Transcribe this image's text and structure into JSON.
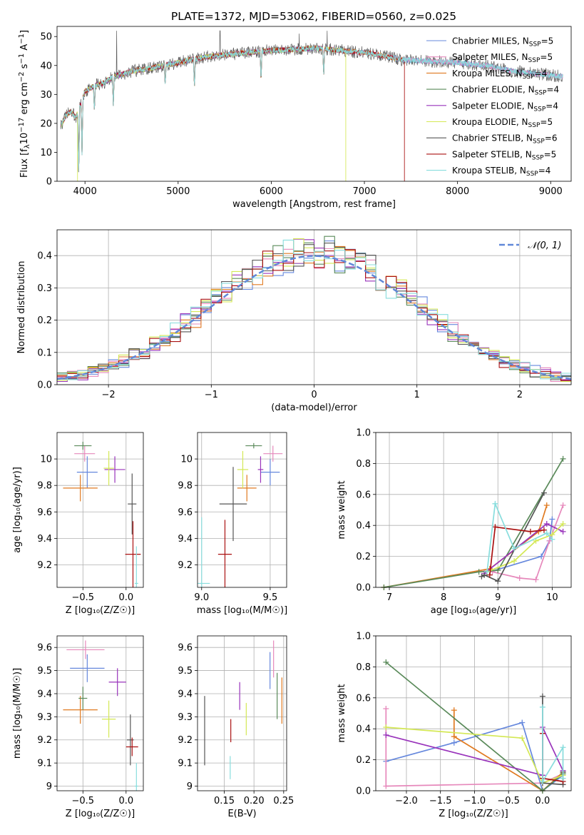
{
  "figure": {
    "title": "PLATE=1372, MJD=53062, FIBERID=0560, z=0.025"
  },
  "models": [
    {
      "name": "Chabrier MILES, N$_{SSP}$=5",
      "label": "Chabrier MILES, N",
      "sub": "SSP",
      "rest": "=5",
      "color": "#6688dd"
    },
    {
      "name": "Salpeter MILES, N$_{SSP}$=5",
      "label": "Salpeter MILES, N",
      "sub": "SSP",
      "rest": "=5",
      "color": "#e688bb"
    },
    {
      "name": "Kroupa MILES, N$_{SSP}$=4",
      "label": "Kroupa MILES, N",
      "sub": "SSP",
      "rest": "=4",
      "color": "#e07a20"
    },
    {
      "name": "Chabrier ELODIE, N$_{SSP}$=4",
      "label": "Chabrier ELODIE, N",
      "sub": "SSP",
      "rest": "=4",
      "color": "#5a8a5a"
    },
    {
      "name": "Salpeter ELODIE, N$_{SSP}$=4",
      "label": "Salpeter ELODIE, N",
      "sub": "SSP",
      "rest": "=4",
      "color": "#9933bb"
    },
    {
      "name": "Kroupa ELODIE, N$_{SSP}$=5",
      "label": "Kroupa ELODIE, N",
      "sub": "SSP",
      "rest": "=5",
      "color": "#d4e855"
    },
    {
      "name": "Chabrier STELIB, N$_{SSP}$=6",
      "label": "Chabrier STELIB, N",
      "sub": "SSP",
      "rest": "=6",
      "color": "#555555"
    },
    {
      "name": "Salpeter STELIB, N$_{SSP}$=5",
      "label": "Salpeter STELIB, N",
      "sub": "SSP",
      "rest": "=5",
      "color": "#aa1111"
    },
    {
      "name": "Kroupa STELIB, N$_{SSP}$=4",
      "label": "Kroupa STELIB, N",
      "sub": "SSP",
      "rest": "=4",
      "color": "#88dddd"
    }
  ],
  "chart_data": [
    {
      "id": "spectrum",
      "type": "line",
      "title": "PLATE=1372, MJD=53062, FIBERID=0560, z=0.025",
      "xlabel": "wavelength [Angstrom, rest frame]",
      "ylabel_parts": [
        "Flux [f",
        "λ",
        "10",
        "−17",
        " erg cm",
        "−2",
        " s",
        "−1",
        " A",
        "−1",
        "]"
      ],
      "xlim": [
        3700,
        9220
      ],
      "ylim": [
        0,
        53.5
      ],
      "xticks": [
        4000,
        5000,
        6000,
        7000,
        8000,
        9000
      ],
      "yticks": [
        0,
        10,
        20,
        30,
        40,
        50
      ],
      "continuum": {
        "x": [
          3740,
          3800,
          3850,
          3900,
          3950,
          4000,
          4100,
          4200,
          4300,
          4400,
          4500,
          4700,
          5000,
          5300,
          5600,
          5900,
          6200,
          6500,
          6800,
          7100,
          7400,
          7700,
          8000,
          8300,
          8600,
          8900,
          9180
        ],
        "y": [
          19,
          23,
          24,
          22,
          26,
          31,
          33,
          34,
          36,
          37,
          38,
          39,
          41,
          43,
          44,
          45,
          45.5,
          46,
          45,
          44,
          42,
          41.5,
          41,
          40,
          38,
          37,
          36
        ]
      },
      "dips": [
        {
          "x": 3933,
          "y": 1
        },
        {
          "x": 3968,
          "y": 9
        },
        {
          "x": 4101,
          "y": 24
        },
        {
          "x": 4304,
          "y": 26
        },
        {
          "x": 4861,
          "y": 33
        },
        {
          "x": 5175,
          "y": 32
        },
        {
          "x": 5890,
          "y": 34
        },
        {
          "x": 6563,
          "y": 36
        }
      ],
      "spikes": [
        {
          "x": 4340,
          "y": 52
        },
        {
          "x": 5450,
          "y": 52
        },
        {
          "x": 6300,
          "y": 51
        },
        {
          "x": 6600,
          "y": 52
        }
      ],
      "drops": [
        {
          "x": 3920,
          "y": 0,
          "model": 5
        },
        {
          "x": 6800,
          "y": 0,
          "model": 5
        },
        {
          "x": 7430,
          "y": 0,
          "model": 7
        }
      ],
      "model_range_end": [
        9130,
        9130,
        7410,
        6790,
        6790,
        6790,
        9130,
        7420,
        9130
      ]
    },
    {
      "id": "residual-histogram",
      "type": "histogram",
      "xlabel": "(data-model)/error",
      "ylabel": "Normed distribution",
      "xlim": [
        -2.5,
        2.5
      ],
      "ylim": [
        0,
        0.48
      ],
      "xticks": [
        -2,
        -1,
        0,
        1,
        2
      ],
      "xtick_labels": [
        "−2",
        "−1",
        "0",
        "1",
        "2"
      ],
      "yticks": [
        0,
        0.1,
        0.2,
        0.3,
        0.4
      ],
      "ytick_labels": [
        "0.0",
        "0.1",
        "0.2",
        "0.3",
        "0.4"
      ],
      "bin_width": 0.1,
      "legend_entry": "𝒩(0, 1)",
      "gaussian": {
        "mean": 0,
        "sigma": 1,
        "color": "#6088d8"
      }
    },
    {
      "id": "age-vs-metallicity",
      "type": "errorbar",
      "xlabel": "Z [log₁₀(Z/Z☉)]",
      "ylabel": "age  [log₁₀(age/yr)]",
      "xlim": [
        -0.8,
        0.2
      ],
      "ylim": [
        9.03,
        10.2
      ],
      "xticks": [
        -0.5,
        0.0
      ],
      "xtick_labels": [
        "−0.5",
        "0.0"
      ],
      "yticks": [
        9.2,
        9.4,
        9.6,
        9.8,
        10.0
      ],
      "points": [
        {
          "x": -0.45,
          "y": 9.9,
          "xerr": 0.12,
          "yerr": 0.12
        },
        {
          "x": -0.48,
          "y": 10.04,
          "xerr": 0.12,
          "yerr": 0.06
        },
        {
          "x": -0.53,
          "y": 9.78,
          "xerr": 0.2,
          "yerr": 0.1
        },
        {
          "x": -0.5,
          "y": 10.1,
          "xerr": 0.1,
          "yerr": 0.03
        },
        {
          "x": -0.13,
          "y": 9.92,
          "xerr": 0.12,
          "yerr": 0.1
        },
        {
          "x": -0.2,
          "y": 9.93,
          "xerr": 0.06,
          "yerr": 0.13
        },
        {
          "x": 0.07,
          "y": 9.66,
          "xerr": 0.05,
          "yerr": 0.23
        },
        {
          "x": 0.08,
          "y": 9.28,
          "xerr": 0.09,
          "yerr": 0.25
        },
        {
          "x": 0.12,
          "y": 9.06,
          "xerr": 0.02,
          "yerr": 0.28
        }
      ]
    },
    {
      "id": "age-vs-mass",
      "type": "errorbar",
      "xlabel": "mass [log₁₀(M/M☉)]",
      "ylabel": "",
      "xlim": [
        8.97,
        9.62
      ],
      "ylim": [
        9.03,
        10.2
      ],
      "xticks": [
        9.0,
        9.5
      ],
      "xtick_labels": [
        "9.0",
        "9.5"
      ],
      "yticks": [
        9.2,
        9.4,
        9.6,
        9.8,
        10.0
      ],
      "points": [
        {
          "x": 9.5,
          "y": 9.9,
          "xerr": 0.07,
          "yerr": 0.1
        },
        {
          "x": 9.52,
          "y": 10.04,
          "xerr": 0.07,
          "yerr": 0.06
        },
        {
          "x": 9.33,
          "y": 9.78,
          "xerr": 0.07,
          "yerr": 0.1
        },
        {
          "x": 9.38,
          "y": 10.1,
          "xerr": 0.06,
          "yerr": 0.02
        },
        {
          "x": 9.43,
          "y": 9.92,
          "xerr": 0.02,
          "yerr": 0.1
        },
        {
          "x": 9.3,
          "y": 9.92,
          "xerr": 0.04,
          "yerr": 0.14
        },
        {
          "x": 9.23,
          "y": 9.66,
          "xerr": 0.1,
          "yerr": 0.28
        },
        {
          "x": 9.17,
          "y": 9.28,
          "xerr": 0.05,
          "yerr": 0.26
        },
        {
          "x": 9.0,
          "y": 9.06,
          "xerr": 0.06,
          "yerr": 0.5
        }
      ]
    },
    {
      "id": "mass-weight-vs-age",
      "type": "line",
      "xlabel": "age  [log₁₀(age/yr)]",
      "ylabel": "mass weight",
      "xlim": [
        6.75,
        10.35
      ],
      "ylim": [
        0,
        1
      ],
      "xticks": [
        7,
        8,
        9,
        10
      ],
      "yticks": [
        0,
        0.2,
        0.4,
        0.6,
        0.8,
        1.0
      ],
      "ytick_labels": [
        "0.0",
        "0.2",
        "0.4",
        "0.6",
        "0.8",
        "1.0"
      ],
      "series": [
        {
          "model": 0,
          "x": [
            8.85,
            9.8,
            9.95,
            10.0
          ],
          "y": [
            0.1,
            0.2,
            0.3,
            0.44
          ]
        },
        {
          "model": 1,
          "x": [
            8.9,
            9.4,
            9.7,
            9.95,
            10.2
          ],
          "y": [
            0.1,
            0.06,
            0.05,
            0.3,
            0.53
          ]
        },
        {
          "model": 2,
          "x": [
            6.9,
            8.85,
            9.75,
            9.9
          ],
          "y": [
            0.0,
            0.12,
            0.36,
            0.53
          ]
        },
        {
          "model": 3,
          "x": [
            6.9,
            8.65,
            9.0,
            10.2
          ],
          "y": [
            0.0,
            0.1,
            0.11,
            0.83
          ]
        },
        {
          "model": 4,
          "x": [
            8.75,
            9.9,
            10.2
          ],
          "y": [
            0.09,
            0.41,
            0.36
          ]
        },
        {
          "model": 5,
          "x": [
            8.8,
            9.3,
            9.7,
            10.0,
            10.2
          ],
          "y": [
            0.1,
            0.17,
            0.3,
            0.34,
            0.41
          ]
        },
        {
          "model": 6,
          "x": [
            8.7,
            8.75,
            9.0,
            9.85
          ],
          "y": [
            0.07,
            0.08,
            0.04,
            0.61
          ]
        },
        {
          "model": 7,
          "x": [
            8.85,
            8.95,
            9.6,
            9.85
          ],
          "y": [
            0.08,
            0.39,
            0.36,
            0.37
          ]
        },
        {
          "model": 8,
          "x": [
            8.8,
            8.95,
            9.3,
            9.9,
            10.0
          ],
          "y": [
            0.1,
            0.54,
            0.25,
            0.35,
            0.31
          ]
        }
      ]
    },
    {
      "id": "mass-vs-metallicity",
      "type": "errorbar",
      "xlabel": "Z [log₁₀(Z/Z☉)]",
      "ylabel": "mass [log₁₀(M/M☉)]",
      "xlim": [
        -0.8,
        0.2
      ],
      "ylim": [
        8.98,
        9.65
      ],
      "xticks": [
        -0.5,
        0.0
      ],
      "xtick_labels": [
        "−0.5",
        "0.0"
      ],
      "yticks": [
        9.0,
        9.1,
        9.2,
        9.3,
        9.4,
        9.5,
        9.6
      ],
      "points": [
        {
          "x": -0.45,
          "y": 9.51,
          "xerr": 0.2,
          "yerr": 0.06
        },
        {
          "x": -0.47,
          "y": 9.59,
          "xerr": 0.22,
          "yerr": 0.04
        },
        {
          "x": -0.53,
          "y": 9.33,
          "xerr": 0.2,
          "yerr": 0.06
        },
        {
          "x": -0.5,
          "y": 9.38,
          "xerr": 0.05,
          "yerr": 0.05
        },
        {
          "x": -0.1,
          "y": 9.45,
          "xerr": 0.1,
          "yerr": 0.06
        },
        {
          "x": -0.2,
          "y": 9.29,
          "xerr": 0.08,
          "yerr": 0.08
        },
        {
          "x": 0.05,
          "y": 9.2,
          "xerr": 0.04,
          "yerr": 0.11
        },
        {
          "x": 0.07,
          "y": 9.17,
          "xerr": 0.07,
          "yerr": 0.04
        },
        {
          "x": 0.12,
          "y": 9.0,
          "xerr": 0.02,
          "yerr": 0.1
        }
      ]
    },
    {
      "id": "mass-vs-ebv",
      "type": "errorbar",
      "xlabel": "E(B-V)",
      "ylabel": "",
      "xlim": [
        0.105,
        0.255
      ],
      "ylim": [
        8.98,
        9.65
      ],
      "xticks": [
        0.15,
        0.2,
        0.25
      ],
      "xtick_labels": [
        "0.15",
        "0.20",
        "0.25"
      ],
      "yticks": [
        9.0,
        9.1,
        9.2,
        9.3,
        9.4,
        9.5,
        9.6
      ],
      "points": [
        {
          "x": 0.227,
          "y": 9.5,
          "xerr": 0,
          "yerr": 0.08
        },
        {
          "x": 0.233,
          "y": 9.55,
          "xerr": 0,
          "yerr": 0.08
        },
        {
          "x": 0.247,
          "y": 9.37,
          "xerr": 0,
          "yerr": 0.1
        },
        {
          "x": 0.239,
          "y": 9.39,
          "xerr": 0,
          "yerr": 0.1
        },
        {
          "x": 0.176,
          "y": 9.39,
          "xerr": 0,
          "yerr": 0.06
        },
        {
          "x": 0.187,
          "y": 9.29,
          "xerr": 0,
          "yerr": 0.07
        },
        {
          "x": 0.117,
          "y": 9.24,
          "xerr": 0,
          "yerr": 0.15
        },
        {
          "x": 0.161,
          "y": 9.24,
          "xerr": 0,
          "yerr": 0.05
        },
        {
          "x": 0.16,
          "y": 9.08,
          "xerr": 0,
          "yerr": 0.05
        }
      ]
    },
    {
      "id": "mass-weight-vs-metallicity",
      "type": "line",
      "xlabel": "Z [log₁₀(Z/Z☉)]",
      "ylabel": "mass weight",
      "xlim": [
        -2.45,
        0.42
      ],
      "ylim": [
        0,
        1
      ],
      "xticks": [
        -2.0,
        -1.5,
        -1.0,
        -0.5,
        0.0
      ],
      "xtick_labels": [
        "−2.0",
        "−1.5",
        "−1.0",
        "−0.5",
        "0.0"
      ],
      "yticks": [
        0,
        0.2,
        0.4,
        0.6,
        0.8,
        1.0
      ],
      "ytick_labels": [
        "0.0",
        "0.2",
        "0.4",
        "0.6",
        "0.8",
        "1.0"
      ],
      "series": [
        {
          "model": 0,
          "x": [
            -2.3,
            -1.3,
            -0.3,
            0.0,
            0.3
          ],
          "y": [
            0.19,
            0.31,
            0.44,
            0.0,
            0.1
          ]
        },
        {
          "model": 1,
          "x": [
            -2.3,
            -2.3,
            0.0,
            0.3
          ],
          "y": [
            0.53,
            0.03,
            0.05,
            0.11
          ]
        },
        {
          "model": 2,
          "x": [
            -1.3,
            -1.3,
            0.0,
            0.3
          ],
          "y": [
            0.52,
            0.35,
            0.0,
            0.12
          ]
        },
        {
          "model": 3,
          "x": [
            -2.3,
            0.0,
            0.3
          ],
          "y": [
            0.83,
            0.0,
            0.11
          ]
        },
        {
          "model": 4,
          "x": [
            -2.3,
            0.0,
            0.0,
            0.3
          ],
          "y": [
            0.36,
            0.1,
            0.41,
            0.13
          ]
        },
        {
          "model": 5,
          "x": [
            -2.3,
            -0.3,
            0.0,
            0.3
          ],
          "y": [
            0.41,
            0.34,
            0.05,
            0.1
          ]
        },
        {
          "model": 6,
          "x": [
            0.0,
            0.0,
            0.3,
            0.3
          ],
          "y": [
            0.61,
            0.05,
            0.04,
            0.12
          ]
        },
        {
          "model": 7,
          "x": [
            0.0,
            0.0,
            0.3
          ],
          "y": [
            0.37,
            0.08,
            0.06
          ]
        },
        {
          "model": 8,
          "x": [
            0.0,
            0.0,
            0.3,
            0.3
          ],
          "y": [
            0.54,
            0.06,
            0.28,
            0.08
          ]
        }
      ]
    }
  ]
}
